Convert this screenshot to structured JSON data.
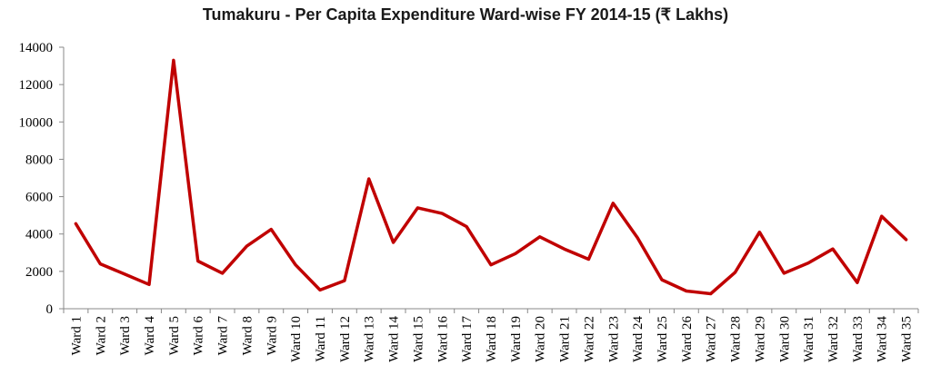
{
  "chart_data": {
    "type": "line",
    "title": "Tumakuru - Per Capita Expenditure Ward-wise FY 2014-15 (₹ Lakhs)",
    "xlabel": "",
    "ylabel": "",
    "ylim": [
      0,
      14000
    ],
    "yticks": [
      0,
      2000,
      4000,
      6000,
      8000,
      10000,
      12000,
      14000
    ],
    "grid": false,
    "legend": "none",
    "line_color": "#c00000",
    "categories": [
      "Ward 1",
      "Ward 2",
      "Ward 3",
      "Ward 4",
      "Ward 5",
      "Ward 6",
      "Ward 7",
      "Ward 8",
      "Ward 9",
      "Ward 10",
      "Ward 11",
      "Ward 12",
      "Ward 13",
      "Ward 14",
      "Ward 15",
      "Ward 16",
      "Ward 17",
      "Ward 18",
      "Ward 19",
      "Ward 20",
      "Ward 21",
      "Ward 22",
      "Ward 23",
      "Ward 24",
      "Ward 25",
      "Ward 26",
      "Ward 27",
      "Ward 28",
      "Ward 29",
      "Ward 30",
      "Ward 31",
      "Ward 32",
      "Ward 33",
      "Ward 34",
      "Ward 35"
    ],
    "series": [
      {
        "values": [
          4550,
          2400,
          1850,
          1300,
          13300,
          2550,
          1900,
          3350,
          4250,
          2350,
          1000,
          1500,
          6950,
          3550,
          5400,
          5100,
          4400,
          2350,
          2950,
          3850,
          3200,
          2650,
          5650,
          3800,
          1550,
          950,
          800,
          1950,
          4100,
          1900,
          2450,
          3200,
          1400,
          4950,
          3700
        ]
      }
    ]
  }
}
